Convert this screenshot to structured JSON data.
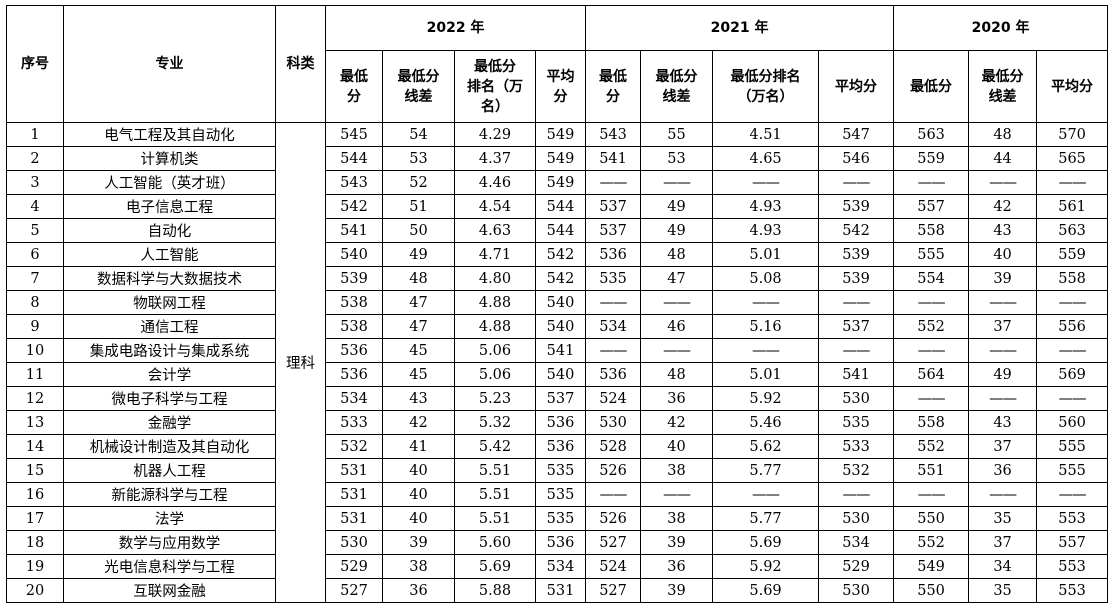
{
  "headers": {
    "index": "序号",
    "major": "专业",
    "category": "科类",
    "years": [
      "2022 年",
      "2021 年",
      "2020 年"
    ],
    "y2022": [
      "最低\n分",
      "最低分\n线差",
      "最低分\n排名（万\n名）",
      "平均\n分"
    ],
    "y2021": [
      "最低\n分",
      "最低分\n线差",
      "最低分排名\n（万名）",
      "平均分"
    ],
    "y2020": [
      "最低分",
      "最低分\n线差",
      "平均分"
    ]
  },
  "category_value": "理科",
  "rows": [
    [
      "1",
      "电气工程及其自动化",
      "545",
      "54",
      "4.29",
      "549",
      "543",
      "55",
      "4.51",
      "547",
      "563",
      "48",
      "570"
    ],
    [
      "2",
      "计算机类",
      "544",
      "53",
      "4.37",
      "549",
      "541",
      "53",
      "4.65",
      "546",
      "559",
      "44",
      "565"
    ],
    [
      "3",
      "人工智能（英才班）",
      "543",
      "52",
      "4.46",
      "549",
      "——",
      "——",
      "——",
      "——",
      "——",
      "——",
      "——"
    ],
    [
      "4",
      "电子信息工程",
      "542",
      "51",
      "4.54",
      "544",
      "537",
      "49",
      "4.93",
      "539",
      "557",
      "42",
      "561"
    ],
    [
      "5",
      "自动化",
      "541",
      "50",
      "4.63",
      "544",
      "537",
      "49",
      "4.93",
      "542",
      "558",
      "43",
      "563"
    ],
    [
      "6",
      "人工智能",
      "540",
      "49",
      "4.71",
      "542",
      "536",
      "48",
      "5.01",
      "539",
      "555",
      "40",
      "559"
    ],
    [
      "7",
      "数据科学与大数据技术",
      "539",
      "48",
      "4.80",
      "542",
      "535",
      "47",
      "5.08",
      "539",
      "554",
      "39",
      "558"
    ],
    [
      "8",
      "物联网工程",
      "538",
      "47",
      "4.88",
      "540",
      "——",
      "——",
      "——",
      "——",
      "——",
      "——",
      "——"
    ],
    [
      "9",
      "通信工程",
      "538",
      "47",
      "4.88",
      "540",
      "534",
      "46",
      "5.16",
      "537",
      "552",
      "37",
      "556"
    ],
    [
      "10",
      "集成电路设计与集成系统",
      "536",
      "45",
      "5.06",
      "541",
      "——",
      "——",
      "——",
      "——",
      "——",
      "——",
      "——"
    ],
    [
      "11",
      "会计学",
      "536",
      "45",
      "5.06",
      "540",
      "536",
      "48",
      "5.01",
      "541",
      "564",
      "49",
      "569"
    ],
    [
      "12",
      "微电子科学与工程",
      "534",
      "43",
      "5.23",
      "537",
      "524",
      "36",
      "5.92",
      "530",
      "——",
      "——",
      "——"
    ],
    [
      "13",
      "金融学",
      "533",
      "42",
      "5.32",
      "536",
      "530",
      "42",
      "5.46",
      "535",
      "558",
      "43",
      "560"
    ],
    [
      "14",
      "机械设计制造及其自动化",
      "532",
      "41",
      "5.42",
      "536",
      "528",
      "40",
      "5.62",
      "533",
      "552",
      "37",
      "555"
    ],
    [
      "15",
      "机器人工程",
      "531",
      "40",
      "5.51",
      "535",
      "526",
      "38",
      "5.77",
      "532",
      "551",
      "36",
      "555"
    ],
    [
      "16",
      "新能源科学与工程",
      "531",
      "40",
      "5.51",
      "535",
      "——",
      "——",
      "——",
      "——",
      "——",
      "——",
      "——"
    ],
    [
      "17",
      "法学",
      "531",
      "40",
      "5.51",
      "535",
      "526",
      "38",
      "5.77",
      "530",
      "550",
      "35",
      "553"
    ],
    [
      "18",
      "数学与应用数学",
      "530",
      "39",
      "5.60",
      "536",
      "527",
      "39",
      "5.69",
      "534",
      "552",
      "37",
      "557"
    ],
    [
      "19",
      "光电信息科学与工程",
      "529",
      "38",
      "5.69",
      "534",
      "524",
      "36",
      "5.92",
      "529",
      "549",
      "34",
      "553"
    ],
    [
      "20",
      "互联网金融",
      "527",
      "36",
      "5.88",
      "531",
      "527",
      "39",
      "5.69",
      "530",
      "550",
      "35",
      "553"
    ]
  ]
}
